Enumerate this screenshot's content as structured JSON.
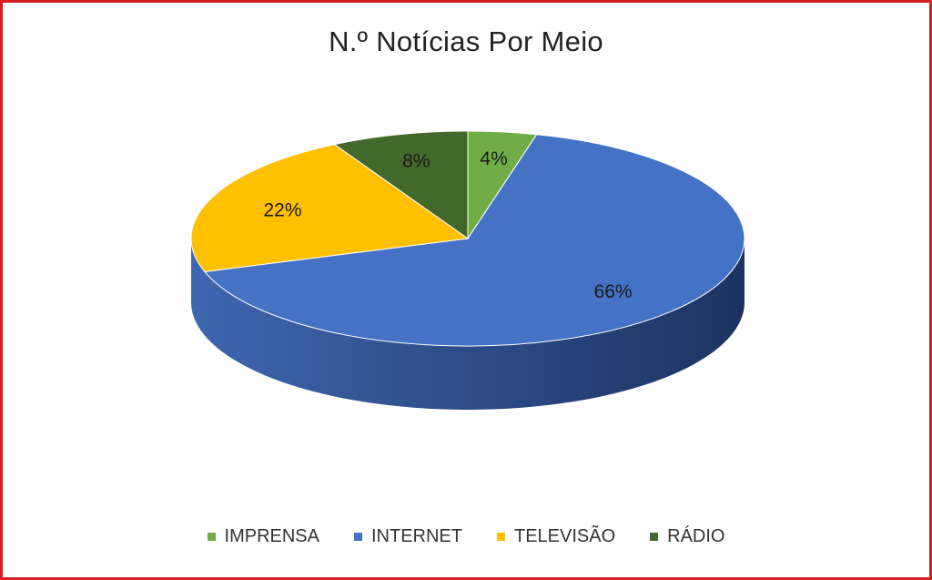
{
  "chart_data": {
    "type": "pie",
    "title": "N.º Notícias Por Meio",
    "categories": [
      "IMPRENSA",
      "INTERNET",
      "TELEVISÃO",
      "RÁDIO"
    ],
    "values": [
      4,
      66,
      22,
      8
    ],
    "labels": [
      "4%",
      "66%",
      "22%",
      "8%"
    ],
    "colors": [
      "#70ad47",
      "#4472c4",
      "#ffc000",
      "#43682b"
    ],
    "legend_position": "bottom",
    "style": "3d"
  }
}
